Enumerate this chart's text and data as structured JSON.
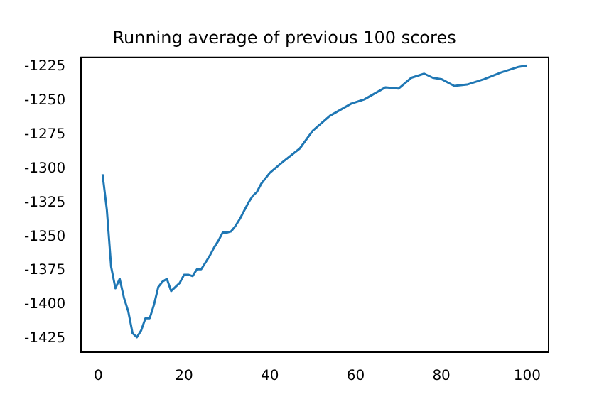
{
  "chart_data": {
    "type": "line",
    "title": "Running average of previous 100 scores",
    "x": [
      1,
      2,
      3,
      4,
      5,
      6,
      7,
      8,
      9,
      10,
      11,
      12,
      13,
      14,
      15,
      16,
      17,
      18,
      19,
      20,
      21,
      22,
      23,
      24,
      25,
      26,
      27,
      28,
      29,
      30,
      31,
      32,
      33,
      34,
      35,
      36,
      37,
      38,
      39,
      40,
      43,
      47,
      50,
      54,
      59,
      62,
      67,
      70,
      73,
      76,
      78,
      80,
      83,
      86,
      90,
      94,
      98,
      100
    ],
    "series": [
      {
        "color": "#1f77b4",
        "values": [
          -1304,
          -1330,
          -1372,
          -1388,
          -1381,
          -1395,
          -1405,
          -1421,
          -1424,
          -1419,
          -1410,
          -1410,
          -1400,
          -1387,
          -1383,
          -1381,
          -1390,
          -1387,
          -1384,
          -1378,
          -1378,
          -1379,
          -1374,
          -1374,
          -1369,
          -1364,
          -1358,
          -1353,
          -1347,
          -1347,
          -1346,
          -1342,
          -1337,
          -1331,
          -1325,
          -1320,
          -1317,
          -1311,
          -1307,
          -1303,
          -1295,
          -1285,
          -1272,
          -1261,
          -1252,
          -1249,
          -1240,
          -1241,
          -1233,
          -1230,
          -1233,
          -1234,
          -1239,
          -1238,
          -1234,
          -1229,
          -1225,
          -1224
        ]
      }
    ],
    "xlim": [
      -4,
      105
    ],
    "xticks": [
      0,
      20,
      40,
      60,
      80,
      100
    ],
    "ylim": [
      -1435,
      -1218
    ],
    "yticks": [
      -1425,
      -1400,
      -1375,
      -1350,
      -1325,
      -1300,
      -1275,
      -1250,
      -1225
    ],
    "grid": false,
    "legend": false
  }
}
